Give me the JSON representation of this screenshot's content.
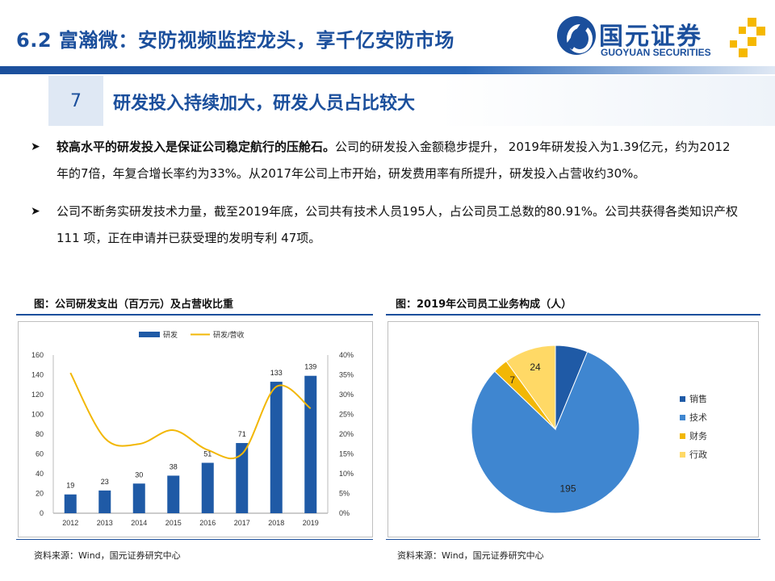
{
  "header": {
    "title": "6.2 富瀚微：安防视频监控龙头，享千亿安防市场",
    "logo_cn": "国元证券",
    "logo_en": "GUOYUAN SECURITIES"
  },
  "section": {
    "number": "7",
    "title": "研发投入持续加大，研发人员占比较大"
  },
  "bullets": [
    {
      "bold": "较高水平的研发投入是保证公司稳定航行的压舱石。",
      "text": "公司的研发投入金额稳步提升， 2019年研发投入为1.39亿元，约为2012年的7倍，年复合增长率约为33%。从2017年公司上市开始，研发费用率有所提升，研发投入占营收约30%。"
    },
    {
      "bold": "",
      "text": "公司不断务实研发技术力量，截至2019年底，公司共有技术人员195人，占公司员工总数的80.91%。公司共获得各类知识产权111 项，正在申请并已获受理的发明专利 47项。"
    }
  ],
  "figures": {
    "left_title": "图：公司研发支出（百万元）及占营收比重",
    "right_title": "图：2019年公司员工业务构成（人）",
    "left_source": "资料来源：Wind，国元证券研究中心",
    "right_source": "资料来源：Wind，国元证券研究中心"
  },
  "colors": {
    "brand_blue": "#1b4f9c",
    "bar_blue": "#1f5aa6",
    "line_gold": "#f2b705",
    "pie_sales": "#1f5aa6",
    "pie_tech": "#3f86d0",
    "pie_finance": "#f2b705",
    "pie_admin": "#ffd966"
  },
  "chart_data": [
    {
      "type": "bar",
      "categories": [
        "2012",
        "2013",
        "2014",
        "2015",
        "2016",
        "2017",
        "2018",
        "2019"
      ],
      "series": [
        {
          "name": "研发",
          "type": "bar",
          "axis": "left",
          "values": [
            19,
            23,
            30,
            38,
            51,
            71,
            133,
            139
          ]
        },
        {
          "name": "研发/营收",
          "type": "line",
          "axis": "right",
          "values": [
            0.355,
            0.19,
            0.175,
            0.21,
            0.16,
            0.15,
            0.32,
            0.265
          ]
        }
      ],
      "ylim_left": [
        0,
        160
      ],
      "yticks_left": [
        "0",
        "20",
        "40",
        "60",
        "80",
        "100",
        "120",
        "140",
        "160"
      ],
      "ylim_right": [
        0,
        0.4
      ],
      "yticks_right": [
        "0%",
        "5%",
        "10%",
        "15%",
        "20%",
        "25%",
        "30%",
        "35%",
        "40%"
      ],
      "data_labels": [
        "19",
        "23",
        "30",
        "38",
        "51",
        "71",
        "133",
        "139"
      ],
      "legend_position": "top",
      "grid": false
    },
    {
      "type": "pie",
      "slices": [
        {
          "name": "销售",
          "value": 15,
          "label": ""
        },
        {
          "name": "技术",
          "value": 195,
          "label": "195"
        },
        {
          "name": "财务",
          "value": 7,
          "label": "7"
        },
        {
          "name": "行政",
          "value": 24,
          "label": "24"
        }
      ],
      "legend_position": "right"
    }
  ]
}
